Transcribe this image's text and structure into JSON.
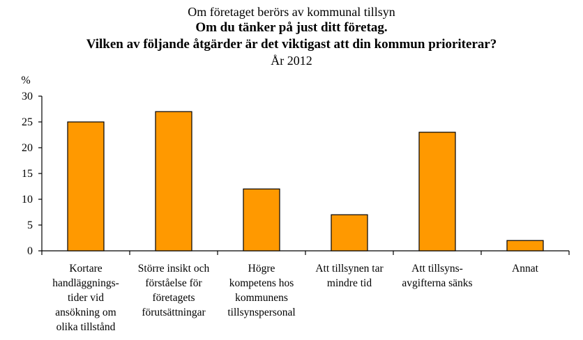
{
  "chart_data": {
    "type": "bar",
    "title_lines": [
      "Om företaget berörs av kommunal tillsyn",
      "Om du tänker på just ditt företag.",
      "Vilken av följande åtgärder är det viktigast att din kommun prioriterar?",
      "År 2012"
    ],
    "ylabel": "%",
    "ylim": [
      0,
      30
    ],
    "yticks": [
      0,
      5,
      10,
      15,
      20,
      25,
      30
    ],
    "categories": [
      [
        "Kortare",
        "handläggnings-",
        "tider vid",
        "ansökning om",
        "olika tillstånd"
      ],
      [
        "Större insikt och",
        "förståelse för",
        "företagets",
        "förutsättningar"
      ],
      [
        "Högre",
        "kompetens hos",
        "kommunens",
        "tillsynspersonal"
      ],
      [
        "Att tillsynen tar",
        "mindre tid"
      ],
      [
        "Att tillsyns-",
        "avgifterna sänks"
      ],
      [
        "Annat"
      ]
    ],
    "values": [
      25,
      27,
      12,
      7,
      23,
      2
    ],
    "bar_color": "#FF9900",
    "grid": false,
    "legend": "none"
  }
}
